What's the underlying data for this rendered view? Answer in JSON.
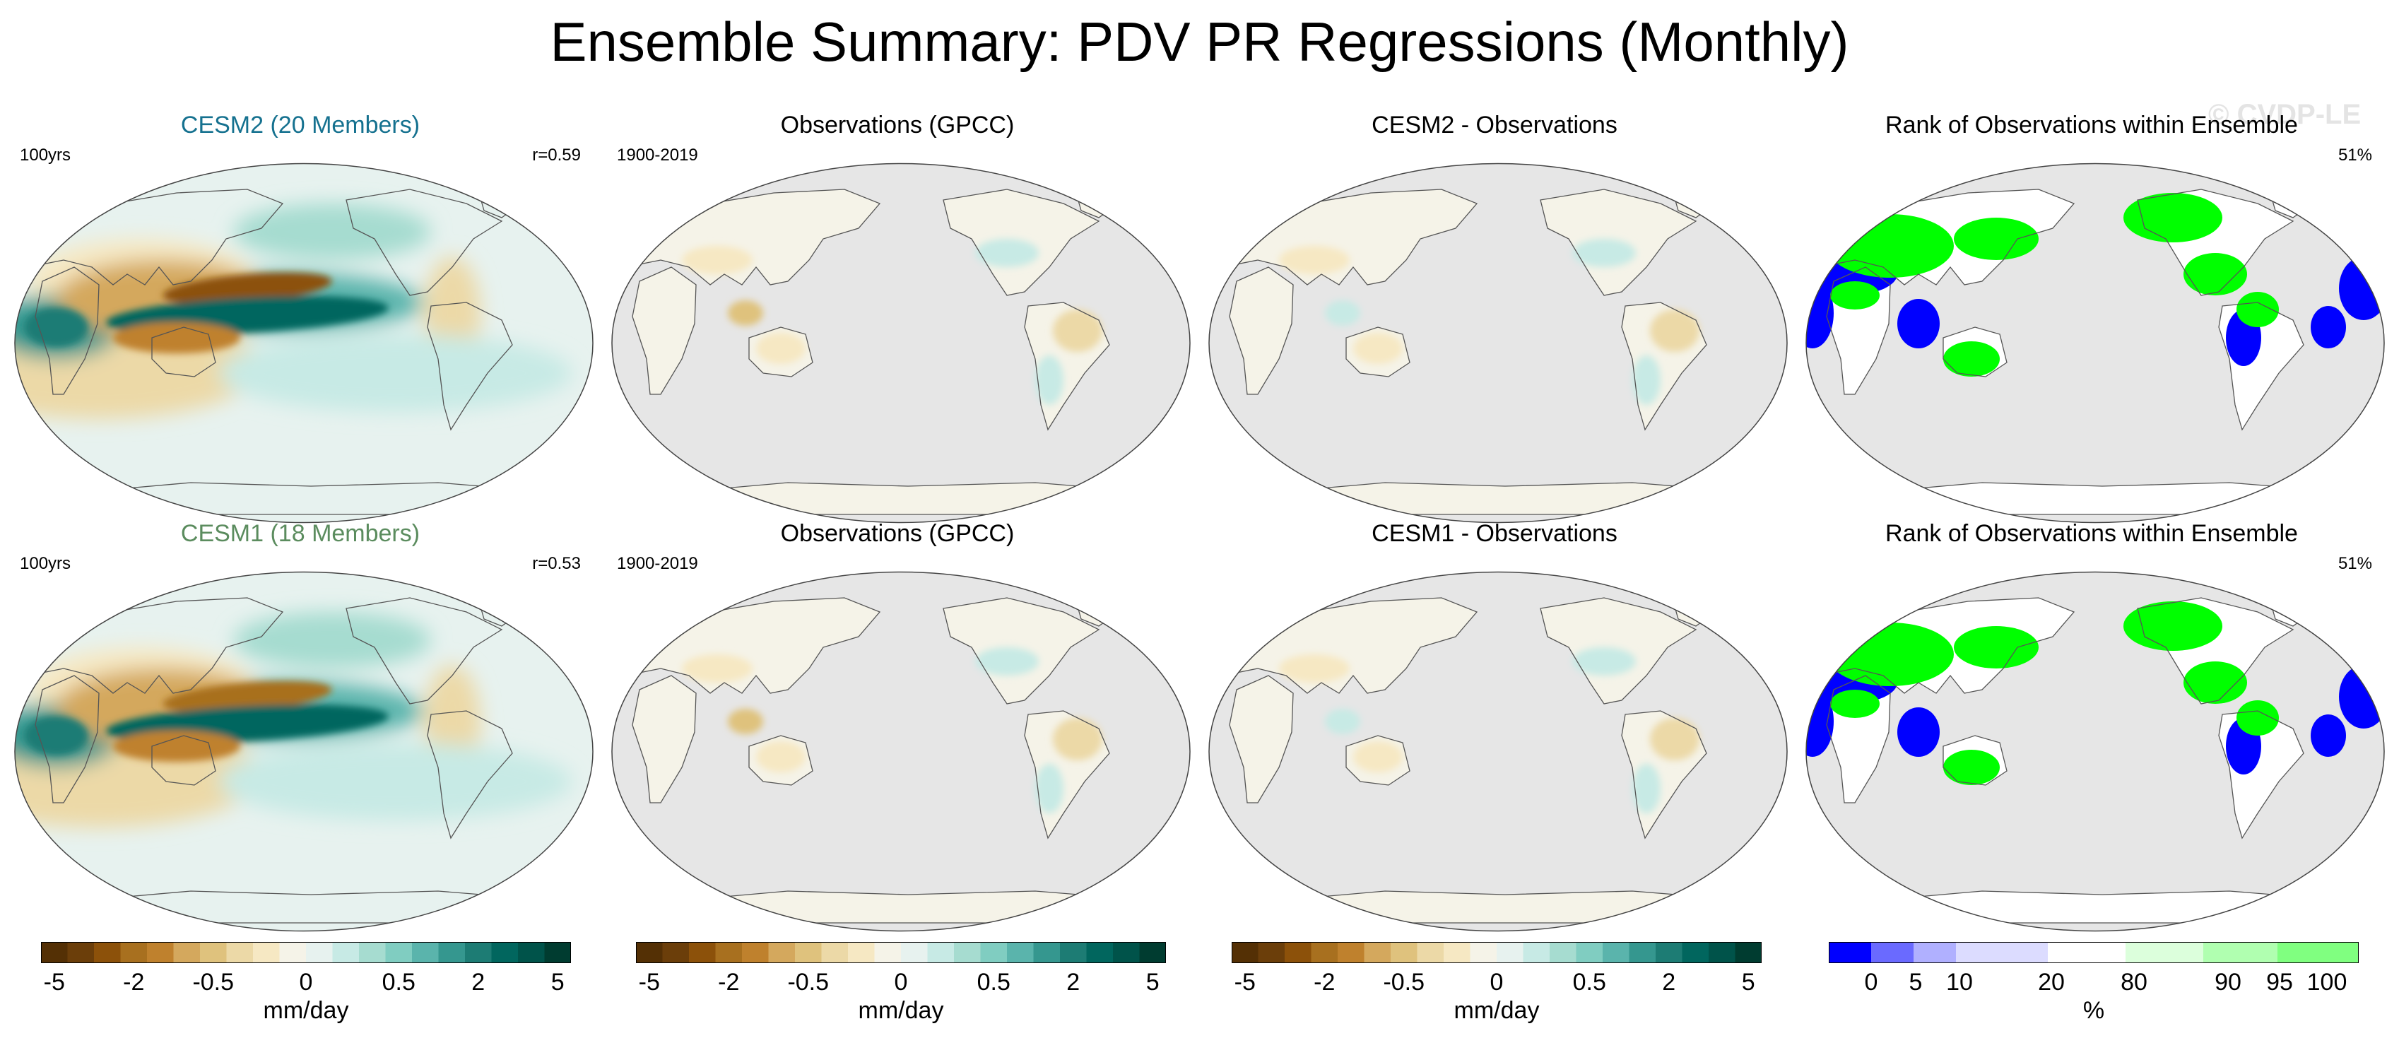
{
  "title": "Ensemble Summary: PDV PR Regressions (Monthly)",
  "watermark": "© CVDP-LE",
  "colors": {
    "brown_teal_ramp": [
      "#543005",
      "#6b3e0a",
      "#8c510a",
      "#a8701f",
      "#bf812d",
      "#d4a85d",
      "#dfc27d",
      "#ecd9a7",
      "#f6e8c3",
      "#f5f3e8",
      "#e7f2ef",
      "#c7eae5",
      "#a6dcd0",
      "#80cdc1",
      "#5ab4ac",
      "#35978f",
      "#1d7c74",
      "#01665e",
      "#00534a",
      "#003c30"
    ],
    "rank_ramp": [
      "#0000ff",
      "#6a6aff",
      "#b0b0ff",
      "#dcdcff",
      "#ffffff",
      "#dcffdc",
      "#b0ffb0",
      "#80ff80",
      "#00ff00"
    ],
    "land_gray": "#e6e6e6"
  },
  "panels": [
    {
      "title": "CESM2 (20 Members)",
      "title_color": "#15718f",
      "left": "100yrs",
      "right": "r=0.59",
      "kind": "model"
    },
    {
      "title": "Observations (GPCC)",
      "title_color": "#000000",
      "left": "1900-2019",
      "right": "",
      "kind": "obs"
    },
    {
      "title": "CESM2 - Observations",
      "title_color": "#000000",
      "left": "",
      "right": "",
      "kind": "diff"
    },
    {
      "title": "Rank of Observations within Ensemble",
      "title_color": "#000000",
      "left": "",
      "right": "51%",
      "kind": "rank"
    },
    {
      "title": "CESM1 (18 Members)",
      "title_color": "#5b8c5e",
      "left": "100yrs",
      "right": "r=0.53",
      "kind": "model"
    },
    {
      "title": "Observations (GPCC)",
      "title_color": "#000000",
      "left": "1900-2019",
      "right": "",
      "kind": "obs"
    },
    {
      "title": "CESM1 - Observations",
      "title_color": "#000000",
      "left": "",
      "right": "",
      "kind": "diff"
    },
    {
      "title": "Rank of Observations within Ensemble",
      "title_color": "#000000",
      "left": "",
      "right": "51%",
      "kind": "rank"
    }
  ],
  "colorbars": [
    {
      "unit": "mm/day",
      "ticks": [
        "-5",
        "-2",
        "-0.5",
        "0",
        "0.5",
        "2",
        "5"
      ]
    },
    {
      "unit": "mm/day",
      "ticks": [
        "-5",
        "-2",
        "-0.5",
        "0",
        "0.5",
        "2",
        "5"
      ]
    },
    {
      "unit": "mm/day",
      "ticks": [
        "-5",
        "-2",
        "-0.5",
        "0",
        "0.5",
        "2",
        "5"
      ]
    },
    {
      "unit": "%",
      "ticks": [
        "0",
        "5",
        "10",
        "20",
        "80",
        "90",
        "95",
        "100"
      ]
    }
  ],
  "chart_data": {
    "type": "heatmap",
    "title": "Ensemble Summary: PDV PR Regressions (Monthly)",
    "variable": "PR regression on PDV",
    "units": "mm/day",
    "contour_levels": [
      -5,
      -4,
      -3,
      -2,
      -1.5,
      -1,
      -0.5,
      -0.25,
      -0.1,
      0,
      0.1,
      0.25,
      0.5,
      1,
      1.5,
      2,
      3,
      4,
      5
    ],
    "rank_levels_percent": [
      0,
      5,
      10,
      20,
      80,
      90,
      95,
      100
    ],
    "panels": [
      {
        "name": "CESM2 (20 Members)",
        "period": "100yrs",
        "pattern_correlation": 0.59
      },
      {
        "name": "Observations (GPCC)",
        "period": "1900-2019"
      },
      {
        "name": "CESM2 - Observations"
      },
      {
        "name": "Rank of Observations within Ensemble",
        "percent": 51
      },
      {
        "name": "CESM1 (18 Members)",
        "period": "100yrs",
        "pattern_correlation": 0.53
      },
      {
        "name": "Observations (GPCC)",
        "period": "1900-2019"
      },
      {
        "name": "CESM1 - Observations"
      },
      {
        "name": "Rank of Observations within Ensemble",
        "percent": 51
      }
    ]
  }
}
